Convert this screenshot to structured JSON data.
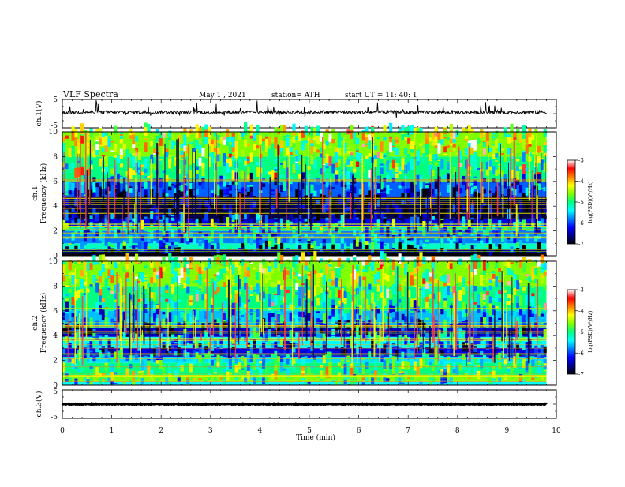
{
  "header": {
    "title": "VLF  Spectra",
    "date": "May 1  , 2021",
    "station": "station= ATH",
    "start_ut": "start  UT  =    11: 40: 1"
  },
  "colors": {
    "frame": "#000000",
    "trace": "#000000",
    "colormap": [
      "#000000",
      "#00008b",
      "#0000ff",
      "#0080ff",
      "#00ffff",
      "#00ff80",
      "#80ff00",
      "#ffff00",
      "#ff8000",
      "#ff0000",
      "#ffffff"
    ]
  },
  "chart_data": [
    {
      "type": "line",
      "name": "ch1-waveform",
      "ylabel": "ch.1(V)",
      "ylim": [
        -5,
        5
      ],
      "y_ticks": [
        "5",
        "-5"
      ],
      "xlim": [
        0,
        10
      ],
      "baseline": 0.5,
      "noise_amplitude": 0.6
    },
    {
      "type": "heatmap",
      "name": "ch1-spectrogram",
      "ylabel_line1": "ch.1",
      "ylabel_line2": "Frequency  (kHz)",
      "ylim": [
        0,
        10
      ],
      "y_ticks": [
        "0",
        "2",
        "4",
        "6",
        "8",
        "10"
      ],
      "xlim": [
        0,
        9.8
      ],
      "colorbar": {
        "label": "log(PSD)(V²/Hz)",
        "range": [
          -7,
          -3
        ],
        "ticks": [
          "-3",
          "-4",
          "-5",
          "-6",
          "-7"
        ]
      },
      "bands": [
        {
          "f": [
            0.0,
            0.2
          ],
          "level": -7.0
        },
        {
          "f": [
            0.2,
            0.5
          ],
          "level": -6.6
        },
        {
          "f": [
            0.5,
            1.0
          ],
          "level": -5.2
        },
        {
          "f": [
            1.0,
            2.0
          ],
          "level": -5.8
        },
        {
          "f": [
            2.0,
            2.4
          ],
          "level": -5.0
        },
        {
          "f": [
            2.4,
            3.0
          ],
          "level": -6.3
        },
        {
          "f": [
            3.0,
            4.8
          ],
          "level": -6.8
        },
        {
          "f": [
            4.8,
            6.0
          ],
          "level": -5.9
        },
        {
          "f": [
            6.0,
            8.0
          ],
          "level": -5.0
        },
        {
          "f": [
            8.0,
            10.0
          ],
          "level": -4.6
        }
      ]
    },
    {
      "type": "heatmap",
      "name": "ch2-spectrogram",
      "ylabel_line1": "ch.2",
      "ylabel_line2": "Frequency  (kHz)",
      "ylim": [
        0,
        10
      ],
      "y_ticks": [
        "0",
        "2",
        "4",
        "6",
        "8",
        "10"
      ],
      "xlim": [
        0,
        9.8
      ],
      "colorbar": {
        "label": "log(PSD)(V²/Hz)",
        "range": [
          -7,
          -3
        ],
        "ticks": [
          "-3",
          "-4",
          "-5",
          "-6",
          "-7"
        ]
      },
      "bands": [
        {
          "f": [
            0.0,
            0.3
          ],
          "level": -5.4
        },
        {
          "f": [
            0.3,
            0.8
          ],
          "level": -4.6
        },
        {
          "f": [
            0.8,
            1.8
          ],
          "level": -5.0
        },
        {
          "f": [
            1.8,
            2.3
          ],
          "level": -5.5
        },
        {
          "f": [
            2.3,
            3.0
          ],
          "level": -6.3
        },
        {
          "f": [
            3.0,
            3.9
          ],
          "level": -5.4
        },
        {
          "f": [
            3.9,
            4.6
          ],
          "level": -6.4
        },
        {
          "f": [
            4.6,
            6.0
          ],
          "level": -5.6
        },
        {
          "f": [
            6.0,
            8.0
          ],
          "level": -5.0
        },
        {
          "f": [
            8.0,
            10.0
          ],
          "level": -4.6
        }
      ]
    },
    {
      "type": "line",
      "name": "ch3-waveform",
      "ylabel": "ch.3(V)",
      "ylim": [
        -5,
        5
      ],
      "y_ticks": [
        "5",
        "-5"
      ],
      "xlim": [
        0,
        10
      ],
      "baseline": 0.0,
      "noise_amplitude": 0.15
    }
  ],
  "x_axis": {
    "label": "Time  (min)",
    "ticks": [
      "0",
      "1",
      "2",
      "3",
      "4",
      "5",
      "6",
      "7",
      "8",
      "9",
      "10"
    ],
    "range": [
      0,
      10
    ]
  }
}
